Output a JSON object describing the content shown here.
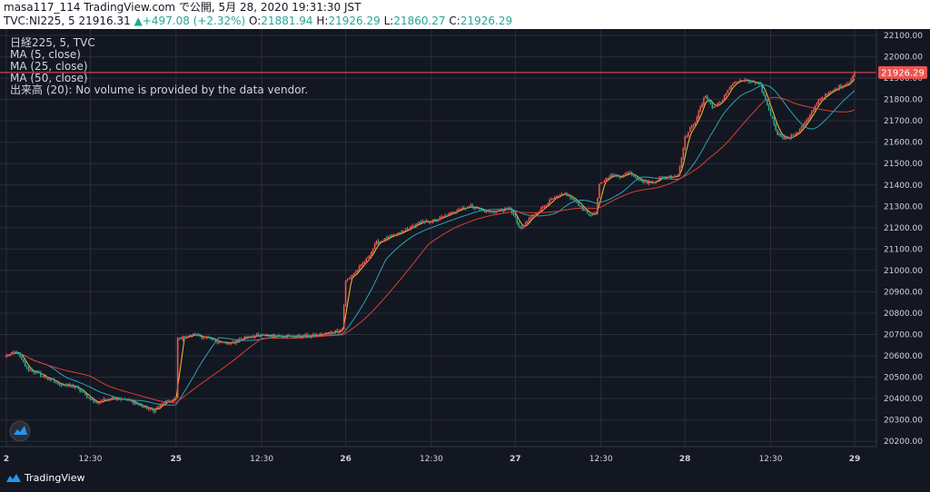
{
  "header": {
    "publish_line": "masa117_114 TradingView.com で公開, 5月 28, 2020 19:31:30 JST",
    "symbol_prefix": "TVC:NI225, 5",
    "last_value": "21916.31",
    "change": "▲+497.08 (+2.32%)",
    "o_label": "O:",
    "o_value": "21881.94",
    "h_label": "H:",
    "h_value": "21926.29",
    "l_label": "L:",
    "l_value": "21860.27",
    "c_label": "C:",
    "c_value": "21926.29"
  },
  "legend": {
    "title": "日経225, 5, TVC",
    "ma5": "MA (5, close)",
    "ma25": "MA (25, close)",
    "ma50": "MA (50, close)",
    "volume": "出来高 (20): No volume is provided by the data vendor."
  },
  "price_badge": "21926.29",
  "brand": "TradingView",
  "logo_icon": "tradingview-cloud-icon",
  "colors": {
    "background": "#131722",
    "up": "#ef5350",
    "down": "#26a69a",
    "ma5": "#f7c531",
    "ma25": "#2aa3b5",
    "ma50": "#d64035",
    "price_line": "#ef5350",
    "grid": "#2a2e39",
    "text": "#d1d4dc"
  },
  "chart_data": {
    "type": "candlestick",
    "y_ticks": [
      "22100.00",
      "22000.00",
      "21900.00",
      "21800.00",
      "21700.00",
      "21600.00",
      "21500.00",
      "21400.00",
      "21300.00",
      "21200.00",
      "21100.00",
      "21000.00",
      "20900.00",
      "20800.00",
      "20700.00",
      "20600.00",
      "20500.00",
      "20400.00",
      "20300.00",
      "20200.00"
    ],
    "ylim": [
      20175,
      22130
    ],
    "x_ticks": [
      {
        "label": "2",
        "i": 0
      },
      {
        "label": "12:30",
        "i": 49
      },
      {
        "label": "25",
        "i": 99
      },
      {
        "label": "12:30",
        "i": 149
      },
      {
        "label": "26",
        "i": 198
      },
      {
        "label": "12:30",
        "i": 248
      },
      {
        "label": "27",
        "i": 297
      },
      {
        "label": "12:30",
        "i": 347
      },
      {
        "label": "28",
        "i": 396
      },
      {
        "label": "12:30",
        "i": 446
      },
      {
        "label": "29",
        "i": 495
      }
    ],
    "anchors": [
      [
        0,
        20600
      ],
      [
        6,
        20620
      ],
      [
        12,
        20540
      ],
      [
        20,
        20510
      ],
      [
        30,
        20470
      ],
      [
        40,
        20455
      ],
      [
        52,
        20380
      ],
      [
        62,
        20405
      ],
      [
        72,
        20390
      ],
      [
        80,
        20360
      ],
      [
        86,
        20345
      ],
      [
        92,
        20380
      ],
      [
        99,
        20400
      ],
      [
        100,
        20680
      ],
      [
        110,
        20700
      ],
      [
        120,
        20675
      ],
      [
        130,
        20655
      ],
      [
        140,
        20690
      ],
      [
        150,
        20695
      ],
      [
        160,
        20695
      ],
      [
        170,
        20690
      ],
      [
        180,
        20695
      ],
      [
        190,
        20710
      ],
      [
        196,
        20725
      ],
      [
        198,
        20950
      ],
      [
        204,
        20995
      ],
      [
        210,
        21050
      ],
      [
        216,
        21130
      ],
      [
        222,
        21150
      ],
      [
        230,
        21175
      ],
      [
        240,
        21220
      ],
      [
        250,
        21235
      ],
      [
        258,
        21260
      ],
      [
        264,
        21290
      ],
      [
        272,
        21300
      ],
      [
        280,
        21275
      ],
      [
        288,
        21280
      ],
      [
        294,
        21290
      ],
      [
        300,
        21190
      ],
      [
        306,
        21250
      ],
      [
        312,
        21290
      ],
      [
        318,
        21330
      ],
      [
        326,
        21360
      ],
      [
        334,
        21310
      ],
      [
        340,
        21260
      ],
      [
        344,
        21265
      ],
      [
        346,
        21400
      ],
      [
        352,
        21445
      ],
      [
        358,
        21440
      ],
      [
        364,
        21460
      ],
      [
        370,
        21420
      ],
      [
        376,
        21410
      ],
      [
        382,
        21435
      ],
      [
        388,
        21440
      ],
      [
        392,
        21445
      ],
      [
        396,
        21620
      ],
      [
        402,
        21700
      ],
      [
        408,
        21820
      ],
      [
        412,
        21760
      ],
      [
        418,
        21800
      ],
      [
        424,
        21880
      ],
      [
        430,
        21890
      ],
      [
        436,
        21880
      ],
      [
        440,
        21865
      ],
      [
        446,
        21730
      ],
      [
        450,
        21640
      ],
      [
        456,
        21615
      ],
      [
        462,
        21650
      ],
      [
        468,
        21710
      ],
      [
        474,
        21800
      ],
      [
        480,
        21830
      ],
      [
        486,
        21860
      ],
      [
        492,
        21880
      ],
      [
        495,
        21926
      ]
    ],
    "last_close": 21926.29,
    "series": [
      {
        "name": "MA (5, close)",
        "period": 5,
        "color": "#f7c531"
      },
      {
        "name": "MA (25, close)",
        "period": 25,
        "color": "#2aa3b5"
      },
      {
        "name": "MA (50, close)",
        "period": 50,
        "color": "#d64035"
      }
    ]
  }
}
